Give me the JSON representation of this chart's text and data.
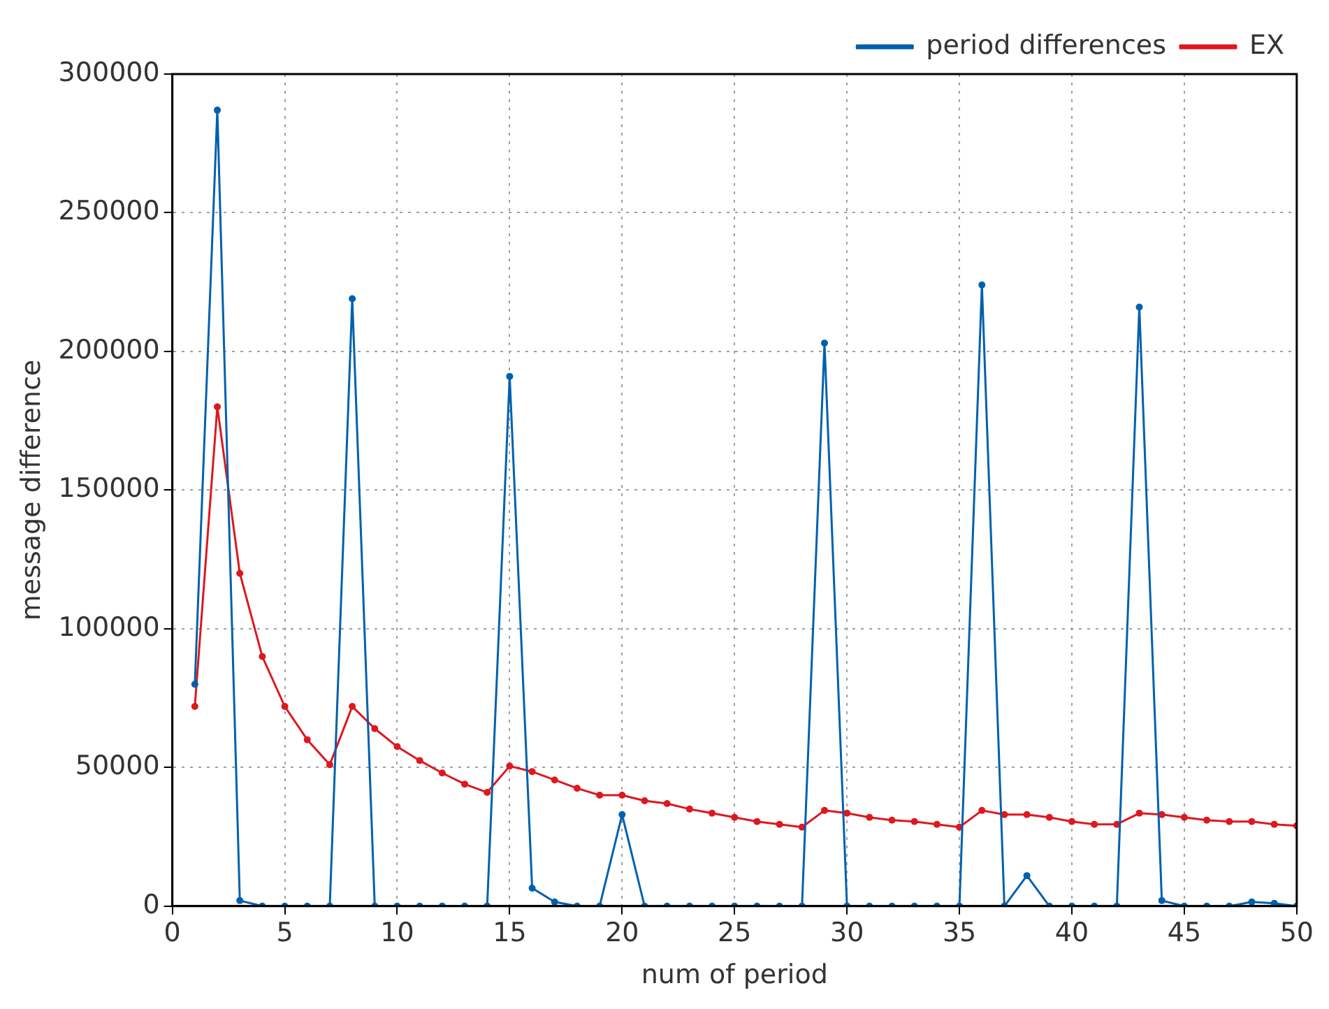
{
  "chart_data": {
    "type": "line",
    "xlabel": "num of period",
    "ylabel": "message difference",
    "x": [
      1,
      2,
      3,
      4,
      5,
      6,
      7,
      8,
      9,
      10,
      11,
      12,
      13,
      14,
      15,
      16,
      17,
      18,
      19,
      20,
      21,
      22,
      23,
      24,
      25,
      26,
      27,
      28,
      29,
      30,
      31,
      32,
      33,
      34,
      35,
      36,
      37,
      38,
      39,
      40,
      41,
      42,
      43,
      44,
      45,
      46,
      47,
      48,
      49,
      50
    ],
    "series": [
      {
        "name": "period differences",
        "color": "#0060ad",
        "values": [
          80000,
          287000,
          2000,
          0,
          0,
          0,
          0,
          219000,
          0,
          0,
          0,
          0,
          0,
          0,
          191000,
          6500,
          1500,
          0,
          0,
          33000,
          0,
          0,
          0,
          0,
          0,
          0,
          0,
          0,
          203000,
          0,
          0,
          0,
          0,
          0,
          0,
          224000,
          0,
          11000,
          0,
          0,
          0,
          0,
          216000,
          2000,
          0,
          0,
          0,
          1500,
          1000,
          0
        ]
      },
      {
        "name": "EX",
        "color": "#dd181f",
        "values": [
          72000,
          180000,
          120000,
          90000,
          72000,
          60000,
          51000,
          72000,
          64000,
          57500,
          52500,
          48000,
          44000,
          41000,
          50500,
          48500,
          45500,
          42500,
          40000,
          40000,
          38000,
          37000,
          35000,
          33500,
          32000,
          30500,
          29500,
          28500,
          34500,
          33500,
          32000,
          31000,
          30500,
          29500,
          28500,
          34500,
          33000,
          33000,
          32000,
          30500,
          29500,
          29500,
          33500,
          33000,
          32000,
          31000,
          30500,
          30500,
          29500,
          29000
        ]
      }
    ],
    "xlim": [
      0,
      50
    ],
    "xticks": [
      0,
      5,
      10,
      15,
      20,
      25,
      30,
      35,
      40,
      45,
      50
    ],
    "ylim": [
      0,
      300000
    ],
    "yticks": [
      0,
      50000,
      100000,
      150000,
      200000,
      250000,
      300000
    ],
    "grid": true,
    "legend": "top right",
    "marker": "circle",
    "line_style": "solid"
  }
}
